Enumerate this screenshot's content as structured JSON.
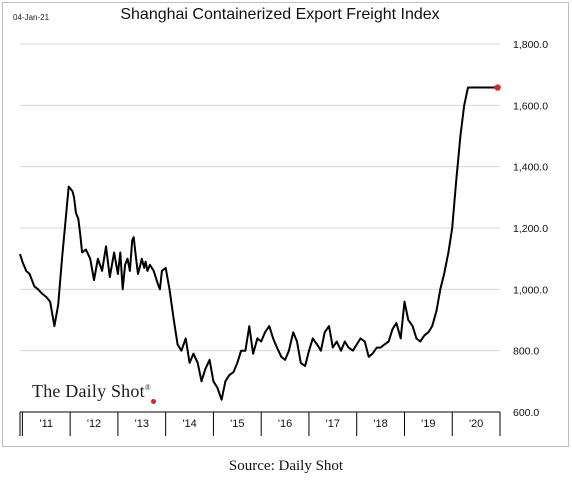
{
  "header": {
    "date": "04-Jan-21",
    "title": "Shanghai Containerized Export Freight Index"
  },
  "source": "Source: Daily Shot",
  "brand": {
    "name": "The Daily Shot",
    "mark": "®",
    "dot_color": "#d62728"
  },
  "colors": {
    "line": "#000000",
    "endpoint": "#d62728",
    "grid": "#d9d9d9",
    "axis": "#000000"
  },
  "chart_data": {
    "type": "line",
    "title": "Shanghai Containerized Export Freight Index",
    "xlabel": "",
    "ylabel": "",
    "ylim": [
      600,
      1800
    ],
    "xlim": [
      2010.95,
      2021.0
    ],
    "grid": true,
    "y_axis_side": "right",
    "yticks": [
      600,
      800,
      1000,
      1200,
      1400,
      1600,
      1800
    ],
    "ytick_labels": [
      "600.0",
      "800.0",
      "1,000.0",
      "1,200.0",
      "1,400.0",
      "1,600.0",
      "1,800.0"
    ],
    "xtick_labels": [
      "'11",
      "'12",
      "'13",
      "'14",
      "'15",
      "'16",
      "'17",
      "'18",
      "'19",
      "'20"
    ],
    "xtick_positions": [
      2011.5,
      2012.5,
      2013.5,
      2014.5,
      2015.5,
      2016.5,
      2017.5,
      2018.5,
      2019.5,
      2020.5
    ],
    "series": [
      {
        "x": [
          2010.95,
          2011.0,
          2011.08,
          2011.15,
          2011.25,
          2011.33,
          2011.42,
          2011.5,
          2011.58,
          2011.67,
          2011.75,
          2011.83,
          2011.92,
          2011.97,
          2012.05,
          2012.08,
          2012.12,
          2012.17,
          2012.21,
          2012.25,
          2012.33,
          2012.42,
          2012.5,
          2012.58,
          2012.67,
          2012.75,
          2012.83,
          2012.92,
          2013.0,
          2013.05,
          2013.1,
          2013.15,
          2013.2,
          2013.25,
          2013.3,
          2013.33,
          2013.38,
          2013.42,
          2013.47,
          2013.5,
          2013.55,
          2013.58,
          2013.62,
          2013.67,
          2013.75,
          2013.83,
          2013.88,
          2013.92,
          2014.0,
          2014.08,
          2014.17,
          2014.25,
          2014.33,
          2014.42,
          2014.5,
          2014.58,
          2014.67,
          2014.75,
          2014.83,
          2014.92,
          2015.0,
          2015.08,
          2015.17,
          2015.25,
          2015.33,
          2015.42,
          2015.5,
          2015.58,
          2015.67,
          2015.75,
          2015.83,
          2015.92,
          2016.0,
          2016.08,
          2016.17,
          2016.25,
          2016.33,
          2016.42,
          2016.5,
          2016.58,
          2016.67,
          2016.75,
          2016.83,
          2016.92,
          2017.0,
          2017.08,
          2017.17,
          2017.25,
          2017.33,
          2017.42,
          2017.5,
          2017.58,
          2017.67,
          2017.75,
          2017.83,
          2017.92,
          2018.0,
          2018.08,
          2018.17,
          2018.25,
          2018.33,
          2018.42,
          2018.5,
          2018.58,
          2018.67,
          2018.75,
          2018.83,
          2018.92,
          2019.0,
          2019.08,
          2019.17,
          2019.25,
          2019.33,
          2019.42,
          2019.5,
          2019.58,
          2019.67,
          2019.75,
          2019.83,
          2019.92,
          2020.0,
          2020.08,
          2020.17,
          2020.25,
          2020.33,
          2020.42,
          2020.5,
          2020.58,
          2020.67,
          2020.75,
          2020.8,
          2020.85,
          2020.9,
          2020.95,
          2021.0
        ],
        "values": [
          1115,
          1090,
          1060,
          1050,
          1010,
          1000,
          985,
          975,
          960,
          880,
          950,
          1100,
          1250,
          1335,
          1320,
          1300,
          1250,
          1230,
          1180,
          1120,
          1130,
          1100,
          1030,
          1100,
          1060,
          1140,
          1040,
          1120,
          1050,
          1120,
          1000,
          1080,
          1100,
          1060,
          1160,
          1170,
          1100,
          1050,
          1080,
          1100,
          1070,
          1090,
          1060,
          1080,
          1060,
          1020,
          1000,
          1060,
          1070,
          1000,
          900,
          820,
          800,
          840,
          760,
          790,
          760,
          700,
          740,
          770,
          700,
          680,
          640,
          700,
          720,
          730,
          760,
          800,
          800,
          880,
          790,
          840,
          830,
          860,
          880,
          840,
          810,
          780,
          770,
          800,
          860,
          830,
          760,
          750,
          800,
          840,
          820,
          800,
          860,
          880,
          810,
          830,
          800,
          830,
          810,
          800,
          820,
          840,
          830,
          780,
          790,
          810,
          810,
          820,
          830,
          870,
          890,
          840,
          960,
          900,
          880,
          840,
          830,
          850,
          860,
          880,
          930,
          1000,
          1050,
          1120,
          1200,
          1350,
          1500,
          1600,
          1658,
          1658,
          1658,
          1658,
          1658,
          1658,
          1658,
          1658,
          1658,
          1658,
          1658
        ]
      }
    ],
    "last_point": {
      "x": 2020.95,
      "value": 1658
    }
  }
}
